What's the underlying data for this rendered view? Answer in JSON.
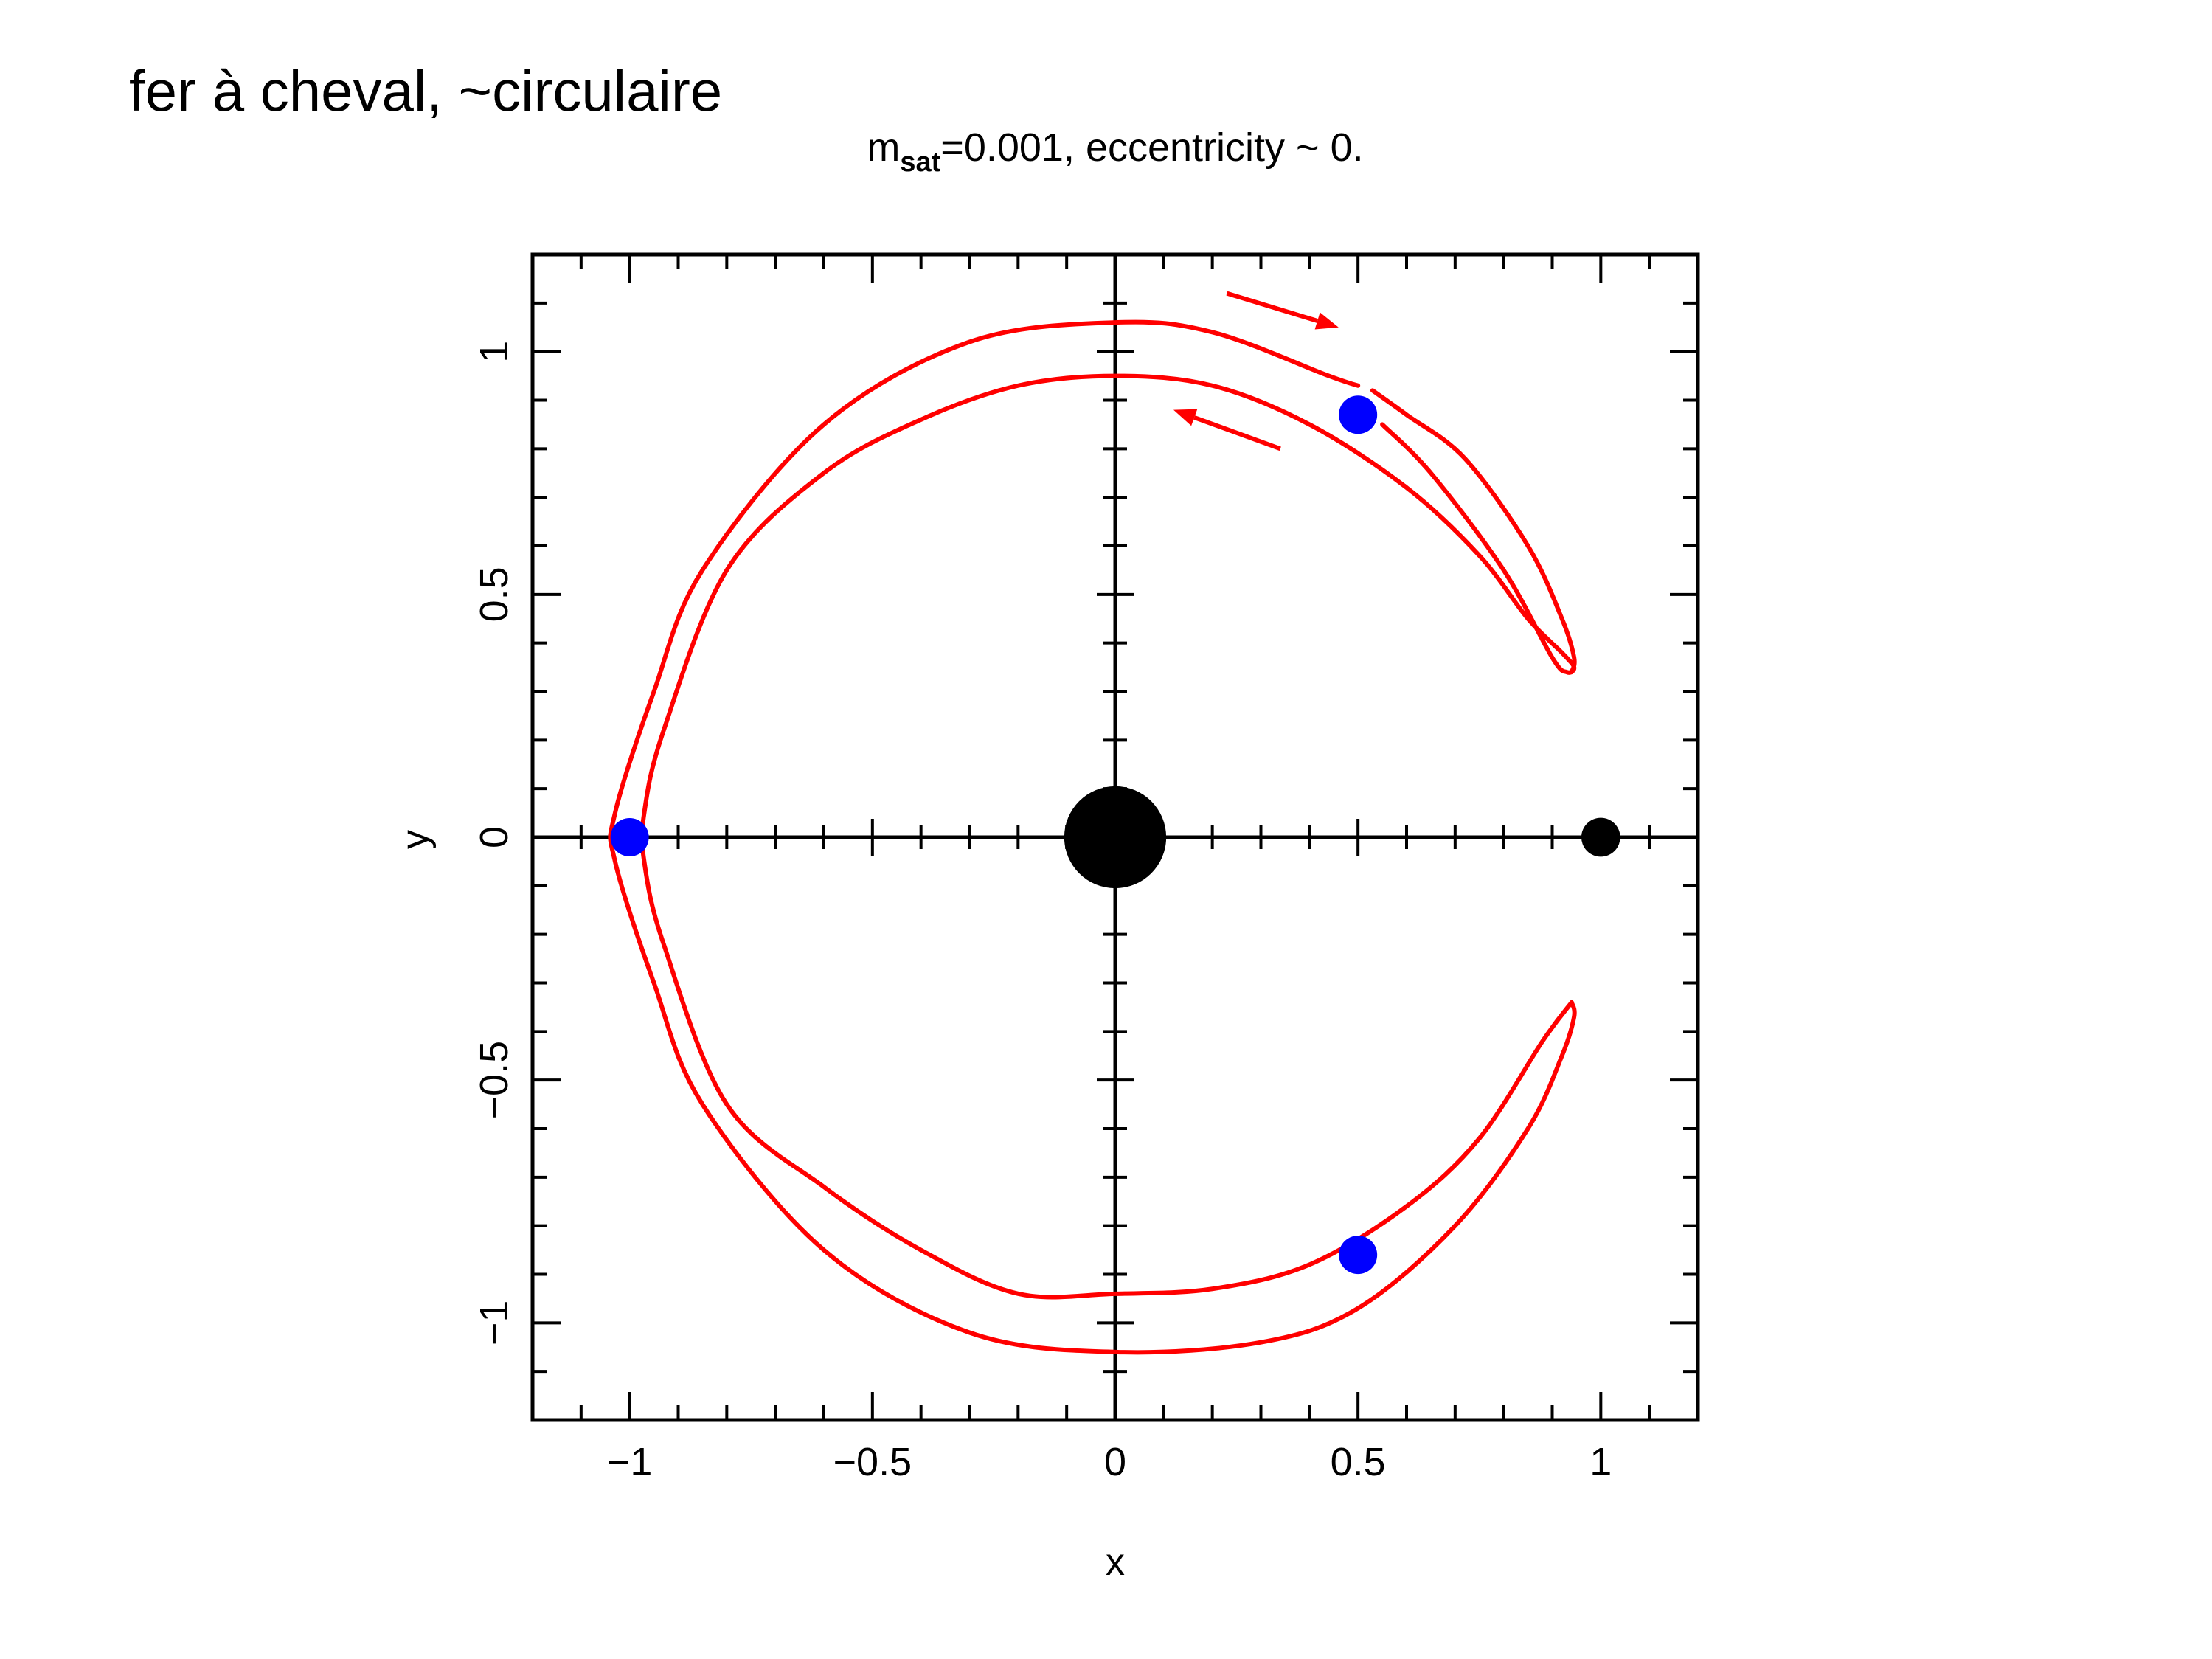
{
  "slide": {
    "title": "fer à cheval, ~circulaire"
  },
  "chart_data": {
    "type": "line",
    "title_main": "m",
    "title_sub": "sat",
    "title_rest": "=0.001, eccentricity ~ 0.",
    "xlabel": "x",
    "ylabel": "y",
    "xlim": [
      -1.2,
      1.2
    ],
    "ylim": [
      -1.2,
      1.2
    ],
    "xticks": [
      -1,
      -0.5,
      0,
      0.5,
      1
    ],
    "xtick_labels": [
      "−1",
      "−0.5",
      "0",
      "0.5",
      "1"
    ],
    "yticks": [
      -1,
      -0.5,
      0,
      0.5,
      1
    ],
    "ytick_labels": [
      "−1",
      "−0.5",
      "0",
      "0.5",
      "1"
    ],
    "grid": false,
    "colors": {
      "orbit": "#ff0000",
      "points": "#0000ff",
      "bodies": "#000000",
      "arrows": "#ff0000"
    },
    "series": [
      {
        "kind": "horseshoe-orbit",
        "outer": [
          [
            0.5,
            0.93
          ],
          [
            0.44,
            0.95
          ],
          [
            0.2,
            1.04
          ],
          [
            0.0,
            1.06
          ],
          [
            -0.3,
            1.02
          ],
          [
            -0.6,
            0.85
          ],
          [
            -0.85,
            0.55
          ],
          [
            -0.95,
            0.3
          ],
          [
            -1.03,
            0.05
          ],
          [
            -1.03,
            -0.05
          ],
          [
            -0.95,
            -0.3
          ],
          [
            -0.85,
            -0.55
          ],
          [
            -0.6,
            -0.85
          ],
          [
            -0.3,
            -1.02
          ],
          [
            0.0,
            -1.06
          ],
          [
            0.3,
            -1.04
          ],
          [
            0.5,
            -0.97
          ],
          [
            0.7,
            -0.8
          ],
          [
            0.85,
            -0.6
          ],
          [
            0.92,
            -0.45
          ],
          [
            0.945,
            -0.37
          ],
          [
            0.94,
            -0.34
          ]
        ],
        "inner": [
          [
            0.94,
            -0.34
          ],
          [
            0.88,
            -0.42
          ],
          [
            0.75,
            -0.62
          ],
          [
            0.6,
            -0.76
          ],
          [
            0.4,
            -0.88
          ],
          [
            0.2,
            -0.93
          ],
          [
            0.0,
            -0.94
          ],
          [
            -0.2,
            -0.94
          ],
          [
            -0.4,
            -0.85
          ],
          [
            -0.6,
            -0.72
          ],
          [
            -0.8,
            -0.55
          ],
          [
            -0.93,
            -0.22
          ],
          [
            -0.97,
            -0.05
          ],
          [
            -0.97,
            0.05
          ],
          [
            -0.93,
            0.22
          ],
          [
            -0.8,
            0.55
          ],
          [
            -0.6,
            0.75
          ],
          [
            -0.4,
            0.86
          ],
          [
            -0.2,
            0.93
          ],
          [
            0.0,
            0.95
          ],
          [
            0.2,
            0.93
          ],
          [
            0.4,
            0.85
          ],
          [
            0.6,
            0.72
          ],
          [
            0.75,
            0.58
          ],
          [
            0.85,
            0.45
          ],
          [
            0.92,
            0.38
          ],
          [
            0.945,
            0.35
          ],
          [
            0.93,
            0.34
          ],
          [
            0.9,
            0.37
          ],
          [
            0.8,
            0.55
          ],
          [
            0.65,
            0.75
          ],
          [
            0.55,
            0.85
          ]
        ],
        "outer_top_tail": [
          [
            0.94,
            0.34
          ],
          [
            0.945,
            0.37
          ],
          [
            0.92,
            0.45
          ],
          [
            0.85,
            0.6
          ],
          [
            0.72,
            0.78
          ],
          [
            0.6,
            0.87
          ],
          [
            0.53,
            0.92
          ]
        ]
      }
    ],
    "points": [
      {
        "x": 0.5,
        "y": 0.87
      },
      {
        "x": -1.0,
        "y": 0.0
      },
      {
        "x": 0.5,
        "y": -0.86
      }
    ],
    "bodies": [
      {
        "x": 0.0,
        "y": 0.0,
        "r": 0.105
      },
      {
        "x": 1.0,
        "y": 0.0,
        "r": 0.04
      }
    ],
    "arrows": [
      {
        "from": [
          0.23,
          1.12
        ],
        "to": [
          0.46,
          1.05
        ]
      },
      {
        "from": [
          0.34,
          0.8
        ],
        "to": [
          0.12,
          0.88
        ]
      }
    ]
  }
}
